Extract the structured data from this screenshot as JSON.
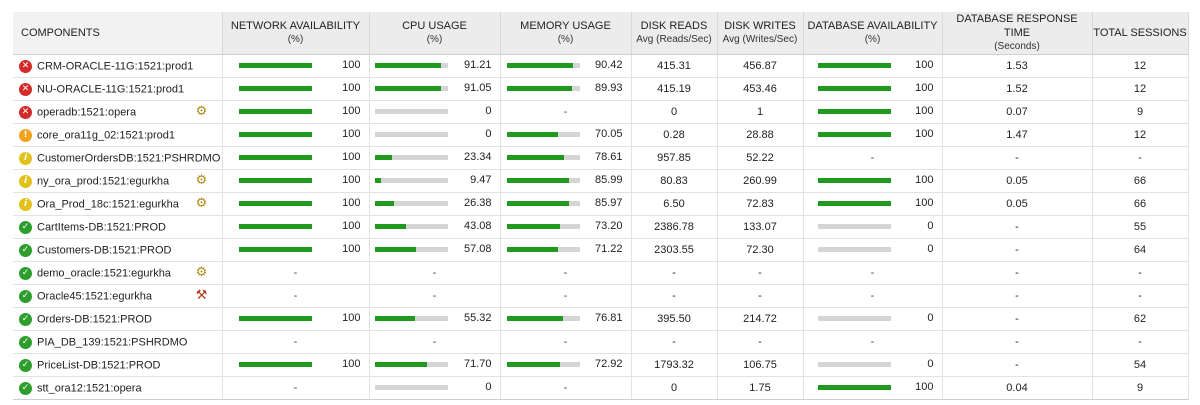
{
  "columns": [
    {
      "key": "component",
      "label": "COMPONENTS",
      "sub": ""
    },
    {
      "key": "network",
      "label": "NETWORK AVAILABILITY",
      "sub": "(%)"
    },
    {
      "key": "cpu",
      "label": "CPU USAGE",
      "sub": "(%)"
    },
    {
      "key": "memory",
      "label": "MEMORY USAGE",
      "sub": "(%)"
    },
    {
      "key": "disk_reads",
      "label": "DISK READS",
      "sub": "Avg (Reads/Sec)"
    },
    {
      "key": "disk_writes",
      "label": "DISK WRITES",
      "sub": "Avg (Writes/Sec)"
    },
    {
      "key": "db_availability",
      "label": "DATABASE AVAILABILITY",
      "sub": "(%)"
    },
    {
      "key": "db_response",
      "label": "DATABASE RESPONSE TIME",
      "sub": "(Seconds)"
    },
    {
      "key": "sessions",
      "label": "TOTAL SESSIONS",
      "sub": ""
    }
  ],
  "colors": {
    "bar_fill": "#1f9a1f",
    "bar_track": "#d5d5d5",
    "critical": "#d42a2a",
    "major": "#f0a21b",
    "minor": "#e2c21a",
    "normal": "#2d9e2d"
  },
  "rows": [
    {
      "name": "CRM-ORACLE-11G:1521:prod1",
      "status": "critical",
      "icon": "",
      "network": "100",
      "network_pct": 100,
      "cpu": "91.21",
      "cpu_pct": 91.21,
      "memory": "90.42",
      "memory_pct": 90.42,
      "disk_reads": "415.31",
      "disk_writes": "456.87",
      "db_availability": "100",
      "db_availability_pct": 100,
      "db_response": "1.53",
      "sessions": "12"
    },
    {
      "name": "NU-ORACLE-11G:1521:prod1",
      "status": "critical",
      "icon": "",
      "network": "100",
      "network_pct": 100,
      "cpu": "91.05",
      "cpu_pct": 91.05,
      "memory": "89.93",
      "memory_pct": 89.93,
      "disk_reads": "415.19",
      "disk_writes": "453.46",
      "db_availability": "100",
      "db_availability_pct": 100,
      "db_response": "1.52",
      "sessions": "12"
    },
    {
      "name": "operadb:1521:opera",
      "status": "critical",
      "icon": "configure-icon",
      "network": "100",
      "network_pct": 100,
      "cpu": "0",
      "cpu_pct": 0,
      "memory": "-",
      "memory_pct": null,
      "disk_reads": "0",
      "disk_writes": "1",
      "db_availability": "100",
      "db_availability_pct": 100,
      "db_response": "0.07",
      "sessions": "9"
    },
    {
      "name": "core_ora11g_02:1521:prod1",
      "status": "major",
      "icon": "",
      "network": "100",
      "network_pct": 100,
      "cpu": "0",
      "cpu_pct": 0,
      "memory": "70.05",
      "memory_pct": 70.05,
      "disk_reads": "0.28",
      "disk_writes": "28.88",
      "db_availability": "100",
      "db_availability_pct": 100,
      "db_response": "1.47",
      "sessions": "12"
    },
    {
      "name": "CustomerOrdersDB:1521:PSHRDMO",
      "status": "minor",
      "icon": "",
      "network": "100",
      "network_pct": 100,
      "cpu": "23.34",
      "cpu_pct": 23.34,
      "memory": "78.61",
      "memory_pct": 78.61,
      "disk_reads": "957.85",
      "disk_writes": "52.22",
      "db_availability": "-",
      "db_availability_pct": null,
      "db_response": "-",
      "sessions": "-"
    },
    {
      "name": "ny_ora_prod:1521:egurkha",
      "status": "minor",
      "icon": "configure-icon",
      "network": "100",
      "network_pct": 100,
      "cpu": "9.47",
      "cpu_pct": 9.47,
      "memory": "85.99",
      "memory_pct": 85.99,
      "disk_reads": "80.83",
      "disk_writes": "260.99",
      "db_availability": "100",
      "db_availability_pct": 100,
      "db_response": "0.05",
      "sessions": "66"
    },
    {
      "name": "Ora_Prod_18c:1521:egurkha",
      "status": "minor",
      "icon": "configure-icon",
      "network": "100",
      "network_pct": 100,
      "cpu": "26.38",
      "cpu_pct": 26.38,
      "memory": "85.97",
      "memory_pct": 85.97,
      "disk_reads": "6.50",
      "disk_writes": "72.83",
      "db_availability": "100",
      "db_availability_pct": 100,
      "db_response": "0.05",
      "sessions": "66"
    },
    {
      "name": "CartItems-DB:1521:PROD",
      "status": "normal",
      "icon": "",
      "network": "100",
      "network_pct": 100,
      "cpu": "43.08",
      "cpu_pct": 43.08,
      "memory": "73.20",
      "memory_pct": 73.2,
      "disk_reads": "2386.78",
      "disk_writes": "133.07",
      "db_availability": "0",
      "db_availability_pct": 0,
      "db_response": "-",
      "sessions": "55"
    },
    {
      "name": "Customers-DB:1521:PROD",
      "status": "normal",
      "icon": "",
      "network": "100",
      "network_pct": 100,
      "cpu": "57.08",
      "cpu_pct": 57.08,
      "memory": "71.22",
      "memory_pct": 71.22,
      "disk_reads": "2303.55",
      "disk_writes": "72.30",
      "db_availability": "0",
      "db_availability_pct": 0,
      "db_response": "-",
      "sessions": "64"
    },
    {
      "name": "demo_oracle:1521:egurkha",
      "status": "normal",
      "icon": "configure-icon",
      "network": "-",
      "network_pct": null,
      "cpu": "-",
      "cpu_pct": null,
      "memory": "-",
      "memory_pct": null,
      "disk_reads": "-",
      "disk_writes": "-",
      "db_availability": "-",
      "db_availability_pct": null,
      "db_response": "-",
      "sessions": "-"
    },
    {
      "name": "Oracle45:1521:egurkha",
      "status": "normal",
      "icon": "tools-icon",
      "network": "-",
      "network_pct": null,
      "cpu": "-",
      "cpu_pct": null,
      "memory": "-",
      "memory_pct": null,
      "disk_reads": "-",
      "disk_writes": "-",
      "db_availability": "-",
      "db_availability_pct": null,
      "db_response": "-",
      "sessions": "-"
    },
    {
      "name": "Orders-DB:1521:PROD",
      "status": "normal",
      "icon": "",
      "network": "100",
      "network_pct": 100,
      "cpu": "55.32",
      "cpu_pct": 55.32,
      "memory": "76.81",
      "memory_pct": 76.81,
      "disk_reads": "395.50",
      "disk_writes": "214.72",
      "db_availability": "0",
      "db_availability_pct": 0,
      "db_response": "-",
      "sessions": "62"
    },
    {
      "name": "PIA_DB_139:1521:PSHRDMO",
      "status": "normal",
      "icon": "",
      "network": "-",
      "network_pct": null,
      "cpu": "-",
      "cpu_pct": null,
      "memory": "-",
      "memory_pct": null,
      "disk_reads": "-",
      "disk_writes": "-",
      "db_availability": "-",
      "db_availability_pct": null,
      "db_response": "-",
      "sessions": "-"
    },
    {
      "name": "PriceList-DB:1521:PROD",
      "status": "normal",
      "icon": "",
      "network": "100",
      "network_pct": 100,
      "cpu": "71.70",
      "cpu_pct": 71.7,
      "memory": "72.92",
      "memory_pct": 72.92,
      "disk_reads": "1793.32",
      "disk_writes": "106.75",
      "db_availability": "0",
      "db_availability_pct": 0,
      "db_response": "-",
      "sessions": "54"
    },
    {
      "name": "stt_ora12:1521:opera",
      "status": "normal",
      "icon": "",
      "network": "-",
      "network_pct": null,
      "cpu": "0",
      "cpu_pct": 0,
      "memory": "-",
      "memory_pct": null,
      "disk_reads": "0",
      "disk_writes": "1.75",
      "db_availability": "100",
      "db_availability_pct": 100,
      "db_response": "0.04",
      "sessions": "9"
    }
  ]
}
